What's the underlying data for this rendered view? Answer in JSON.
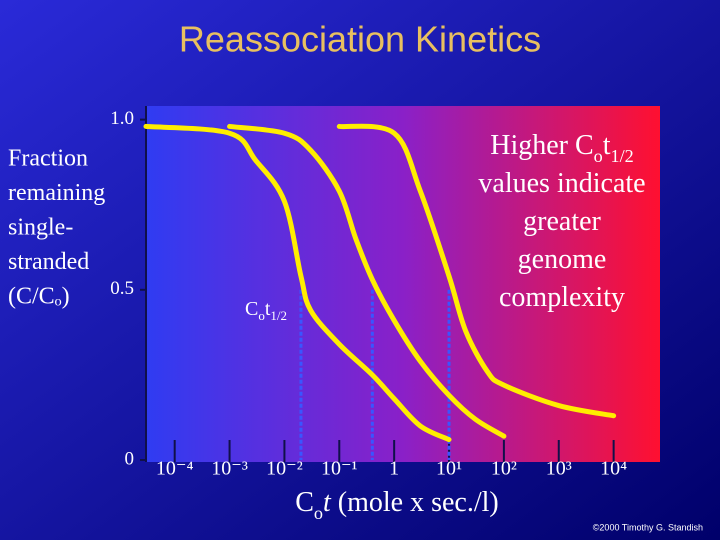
{
  "chart_data": {
    "type": "line",
    "title": "Reassociation Kinetics",
    "y_label": [
      "Fraction",
      "remaining",
      "single-",
      "stranded",
      "(C/Cₒ)"
    ],
    "x_label": [
      {
        "text": "C"
      },
      {
        "text": "o",
        "sub": true
      },
      {
        "text": "t",
        "italic": true
      },
      {
        "text": " (mole x sec./l)"
      }
    ],
    "annotation": [
      [
        {
          "text": "Higher C"
        },
        {
          "text": "o",
          "sub": true
        },
        {
          "text": "t"
        },
        {
          "text": "1/2",
          "sub": true
        }
      ],
      [
        {
          "text": "values indicate"
        }
      ],
      [
        {
          "text": "greater"
        }
      ],
      [
        {
          "text": "genome"
        }
      ],
      [
        {
          "text": "complexity"
        }
      ]
    ],
    "half_label": [
      {
        "text": "C"
      },
      {
        "text": "o",
        "sub": true
      },
      {
        "text": "t"
      },
      {
        "text": "1/2",
        "sub": true
      }
    ],
    "half_x": [
      0.02,
      0.4,
      10
    ],
    "half_y": 0.5,
    "half_color": "#3a55ff",
    "credit": "©2000 Timothy G. Standish",
    "log_x": true,
    "xlim": [
      3e-05,
      70000
    ],
    "xticks": [
      {
        "value": 0.0001,
        "label": "10⁻⁴"
      },
      {
        "value": 0.001,
        "label": "10⁻³"
      },
      {
        "value": 0.01,
        "label": "10⁻²"
      },
      {
        "value": 0.1,
        "label": "10⁻¹"
      },
      1,
      {
        "value": 10,
        "label": "10¹"
      },
      {
        "value": 100,
        "label": "10²"
      },
      {
        "value": 1000,
        "label": "10³"
      },
      {
        "value": 10000,
        "label": "10⁴"
      }
    ],
    "ylim": [
      0,
      1.04
    ],
    "yticks": [
      0,
      0.5,
      {
        "value": 1,
        "label": "1.0"
      }
    ],
    "series": [
      {
        "color": "#ffee00",
        "x": [
          3e-05,
          0.001,
          0.003,
          0.01,
          0.02,
          0.03,
          0.1,
          0.4,
          1,
          3,
          10
        ],
        "values": [
          0.98,
          0.96,
          0.88,
          0.76,
          0.54,
          0.44,
          0.34,
          0.25,
          0.18,
          0.1,
          0.06
        ]
      },
      {
        "color": "#ffee00",
        "x": [
          0.001,
          0.01,
          0.03,
          0.1,
          0.2,
          0.4,
          1,
          3,
          10,
          30,
          100
        ],
        "values": [
          0.98,
          0.96,
          0.91,
          0.79,
          0.65,
          0.53,
          0.41,
          0.29,
          0.19,
          0.12,
          0.07
        ]
      },
      {
        "color": "#ffee00",
        "x": [
          0.1,
          1,
          3,
          10,
          20,
          50,
          100,
          1000,
          10000
        ],
        "values": [
          0.98,
          0.96,
          0.79,
          0.54,
          0.38,
          0.26,
          0.22,
          0.16,
          0.13
        ]
      }
    ]
  }
}
